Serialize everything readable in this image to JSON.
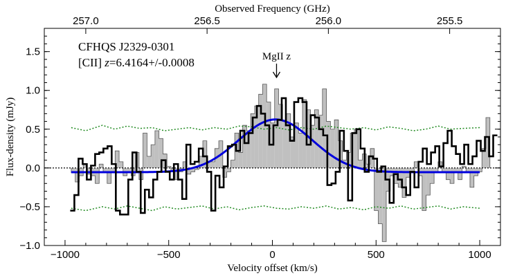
{
  "chart_data": {
    "type": "line",
    "title": "",
    "xlabel": "Velocity offset (km/s)",
    "ylabel": "Flux-density (mJy)",
    "top_xlabel": "Observed Frequency (GHz)",
    "xlim": [
      -1100,
      1100
    ],
    "ylim": [
      -1.0,
      1.8
    ],
    "x_ticks": [
      -1000,
      -500,
      0,
      500,
      1000
    ],
    "x_tick_labels": [
      "−1000",
      "−500",
      "0",
      "500",
      "1000"
    ],
    "y_ticks": [
      -1.0,
      -0.5,
      0.0,
      0.5,
      1.0,
      1.5
    ],
    "y_tick_labels": [
      "−1.0",
      "−0.5",
      "0.0",
      "0.5",
      "1.0",
      "1.5"
    ],
    "top_ticks": [
      {
        "label": "257.0",
        "v": -900
      },
      {
        "label": "256.5",
        "v": -315
      },
      {
        "label": "256.0",
        "v": 270
      },
      {
        "label": "255.5",
        "v": 855
      }
    ],
    "annotations": {
      "object_name": "CFHQS J2329-0301",
      "line_prefix": "[CII] ",
      "z_symbol": "z",
      "redshift_text": "=6.4164+/-0.0008",
      "marker_label": "MgII z",
      "marker_v": 20
    },
    "grey_spectrum": {
      "name": "Spectrum (filled histogram)",
      "x_start": -970,
      "step": 19.23,
      "values": [
        -0.06,
        -0.18,
        -0.1,
        0.05,
        -0.08,
        -0.1,
        -0.2,
        0.05,
        -0.05,
        -0.2,
        -0.05,
        0.22,
        0.08,
        -0.1,
        -0.05,
        -0.1,
        0.2,
        -0.15,
        0.45,
        0.15,
        0.3,
        0.48,
        0.38,
        0.18,
        0.02,
        -0.05,
        -0.15,
        -0.05,
        0.08,
        -0.08,
        -0.05,
        -0.02,
        0.15,
        0.35,
        0.08,
        0.08,
        0.25,
        0.35,
        -0.12,
        -0.05,
        0.1,
        0.45,
        0.2,
        0.55,
        0.48,
        0.7,
        0.8,
        0.95,
        1.08,
        0.85,
        0.58,
        1.02,
        0.82,
        0.6,
        0.7,
        0.4,
        0.58,
        0.45,
        0.88,
        0.75,
        0.55,
        0.75,
        0.68,
        1.02,
        0.6,
        0.5,
        0.62,
        0.35,
        0.1,
        0.2,
        0.45,
        0.5,
        0.1,
        0.18,
        0.05,
        0.25,
        -0.55,
        -0.72,
        -0.95,
        -0.3,
        -0.1,
        -0.2,
        -0.25,
        -0.38,
        -0.12,
        -0.05,
        0.08,
        -0.1,
        -0.55,
        -0.35,
        -0.2,
        -0.05,
        0.08,
        -0.05,
        -0.15,
        -0.2,
        -0.05,
        -0.15,
        0.02,
        -0.05,
        -0.25,
        -0.1,
        -0.05,
        0.25,
        0.65
      ]
    },
    "black_spectrum": {
      "name": "Spectrum (binned step)",
      "x_start": -975,
      "step": 20,
      "values": [
        -0.55,
        -0.35,
        0.12,
        0.05,
        -0.15,
        0.03,
        0.18,
        0.2,
        0.25,
        0.28,
        0.05,
        -0.55,
        -0.6,
        -0.6,
        -0.15,
        0.2,
        -0.05,
        -0.58,
        -0.28,
        -0.38,
        -0.15,
        -0.05,
        0.1,
        -0.05,
        -0.15,
        0.05,
        -0.15,
        -0.4,
        0.3,
        0.05,
        0.08,
        0.25,
        0.15,
        -0.05,
        -0.55,
        -0.1,
        -0.25,
        0.02,
        0.28,
        0.3,
        0.22,
        0.48,
        0.32,
        0.45,
        0.65,
        0.8,
        0.7,
        0.55,
        0.3,
        0.55,
        0.62,
        0.9,
        0.55,
        0.35,
        0.85,
        0.9,
        0.85,
        0.3,
        0.68,
        0.65,
        0.5,
        0.42,
        -0.22,
        -0.2,
        -0.05,
        0.48,
        0.22,
        -0.42,
        0.45,
        0.5,
        0.25,
        -0.05,
        0.15,
        0.12,
        -0.05,
        0.02,
        -0.15,
        -0.45,
        -0.08,
        -0.15,
        -0.25,
        -0.35,
        -0.05,
        -0.25,
        0.08,
        0.25,
        0.05,
        0.2,
        0.28,
        0.02,
        0.32,
        0.48,
        0.28,
        0.18,
        0.05,
        0.3,
        0.05,
        0.15,
        0.35,
        0.22,
        0.4,
        0.15,
        0.42
      ]
    },
    "gaussian_fit": {
      "name": "Gaussian fit",
      "peak": 0.68,
      "center": 15,
      "sigma": 178,
      "baseline": -0.055
    },
    "noise_envelope": {
      "name": "±rms noise",
      "upper_points": [
        [
          -970,
          0.52
        ],
        [
          -900,
          0.48
        ],
        [
          -820,
          0.55
        ],
        [
          -760,
          0.5
        ],
        [
          -700,
          0.54
        ],
        [
          -640,
          0.51
        ],
        [
          -580,
          0.52
        ],
        [
          -520,
          0.48
        ],
        [
          -460,
          0.5
        ],
        [
          -400,
          0.52
        ],
        [
          -340,
          0.49
        ],
        [
          -280,
          0.52
        ],
        [
          -220,
          0.5
        ],
        [
          -160,
          0.54
        ],
        [
          -100,
          0.53
        ],
        [
          -40,
          0.5
        ],
        [
          20,
          0.52
        ],
        [
          80,
          0.49
        ],
        [
          140,
          0.52
        ],
        [
          200,
          0.5
        ],
        [
          260,
          0.54
        ],
        [
          320,
          0.52
        ],
        [
          380,
          0.5
        ],
        [
          440,
          0.52
        ],
        [
          500,
          0.49
        ],
        [
          560,
          0.53
        ],
        [
          620,
          0.51
        ],
        [
          680,
          0.48
        ],
        [
          740,
          0.5
        ],
        [
          800,
          0.54
        ],
        [
          860,
          0.5
        ],
        [
          920,
          0.51
        ],
        [
          1000,
          0.52
        ]
      ],
      "lower_points": [
        [
          -970,
          -0.52
        ],
        [
          -900,
          -0.55
        ],
        [
          -820,
          -0.5
        ],
        [
          -760,
          -0.53
        ],
        [
          -700,
          -0.49
        ],
        [
          -640,
          -0.52
        ],
        [
          -580,
          -0.55
        ],
        [
          -520,
          -0.5
        ],
        [
          -460,
          -0.53
        ],
        [
          -400,
          -0.51
        ],
        [
          -340,
          -0.49
        ],
        [
          -280,
          -0.53
        ],
        [
          -220,
          -0.5
        ],
        [
          -160,
          -0.54
        ],
        [
          -100,
          -0.51
        ],
        [
          -40,
          -0.49
        ],
        [
          20,
          -0.52
        ],
        [
          80,
          -0.53
        ],
        [
          140,
          -0.5
        ],
        [
          200,
          -0.52
        ],
        [
          260,
          -0.49
        ],
        [
          320,
          -0.53
        ],
        [
          380,
          -0.51
        ],
        [
          440,
          -0.54
        ],
        [
          500,
          -0.5
        ],
        [
          560,
          -0.52
        ],
        [
          620,
          -0.49
        ],
        [
          680,
          -0.53
        ],
        [
          740,
          -0.51
        ],
        [
          800,
          -0.49
        ],
        [
          860,
          -0.53
        ],
        [
          920,
          -0.5
        ],
        [
          1000,
          -0.52
        ]
      ]
    },
    "colors": {
      "grey_fill": "#c0c0c0",
      "black_line": "#000000",
      "gauss_line": "#0000dd",
      "noise_line": "#228b22"
    }
  }
}
